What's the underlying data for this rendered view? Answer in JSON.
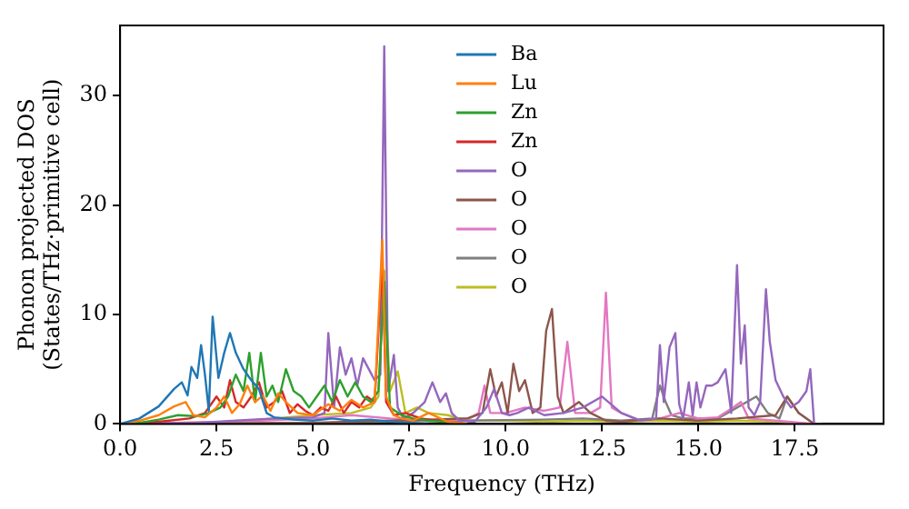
{
  "chart_data": {
    "type": "line",
    "xlabel": "Frequency (THz)",
    "ylabel": "Phonon projected DOS\n(States/THz·primitive cell)",
    "xlim": [
      0,
      19.8
    ],
    "ylim": [
      0,
      36.4
    ],
    "xticks": [
      {
        "value": 0,
        "label": "0.0"
      },
      2.5,
      {
        "value": 5,
        "label": "5.0"
      },
      7.5,
      {
        "value": 10,
        "label": "10.0"
      },
      12.5,
      {
        "value": 15,
        "label": "15.0"
      },
      17.5
    ],
    "yticks": [
      0,
      10,
      20,
      30
    ],
    "grid": false,
    "legend": "top",
    "line_style": "solid",
    "series": [
      {
        "name": "Ba",
        "color": "#1f77b4",
        "x": [
          0,
          0.5,
          1.0,
          1.4,
          1.6,
          1.75,
          1.85,
          2.0,
          2.1,
          2.2,
          2.3,
          2.4,
          2.55,
          2.7,
          2.85,
          3.0,
          3.2,
          3.4,
          3.6,
          3.8,
          4.0,
          4.5,
          5.0,
          5.5,
          6.0,
          6.5,
          7.0,
          7.5,
          8.0
        ],
        "values": [
          0,
          0.5,
          1.6,
          3.2,
          3.8,
          2.6,
          5.2,
          4.2,
          7.2,
          4.5,
          1.2,
          9.8,
          4.2,
          6.5,
          8.3,
          6.5,
          5.0,
          4.0,
          3.2,
          1.0,
          0.6,
          0.4,
          0.3,
          0.5,
          0.3,
          0.4,
          0.2,
          0.1,
          0
        ]
      },
      {
        "name": "Lu",
        "color": "#ff7f0e",
        "x": [
          0,
          0.5,
          1.0,
          1.4,
          1.7,
          1.9,
          2.2,
          2.5,
          2.7,
          2.9,
          3.1,
          3.3,
          3.5,
          3.7,
          3.9,
          4.1,
          4.3,
          4.6,
          5.0,
          5.4,
          5.7,
          6.0,
          6.3,
          6.6,
          6.8,
          6.9,
          7.1,
          7.3,
          7.6,
          8.0,
          8.5,
          9.0
        ],
        "values": [
          0,
          0.3,
          0.8,
          1.6,
          2.0,
          0.8,
          0.6,
          1.5,
          2.5,
          1.0,
          1.8,
          3.5,
          2.0,
          2.6,
          1.2,
          2.8,
          2.0,
          1.0,
          0.8,
          1.8,
          1.2,
          2.2,
          1.5,
          2.0,
          16.8,
          2.5,
          0.8,
          0.5,
          0.3,
          1.0,
          0.2,
          0
        ]
      },
      {
        "name": "Zn",
        "color": "#2ca02c",
        "x": [
          0,
          0.5,
          1.0,
          1.5,
          2.0,
          2.3,
          2.6,
          2.8,
          3.0,
          3.2,
          3.35,
          3.5,
          3.65,
          3.8,
          3.95,
          4.1,
          4.3,
          4.5,
          4.7,
          4.9,
          5.1,
          5.3,
          5.5,
          5.7,
          5.9,
          6.1,
          6.3,
          6.5,
          6.7,
          6.85,
          7.0,
          7.3,
          7.6,
          8.0,
          9.0
        ],
        "values": [
          0,
          0.1,
          0.4,
          0.8,
          0.7,
          1.0,
          1.5,
          2.5,
          4.5,
          3.0,
          6.5,
          2.0,
          6.5,
          2.5,
          3.5,
          2.0,
          5.0,
          3.0,
          2.5,
          1.5,
          2.5,
          3.5,
          2.0,
          4.0,
          2.5,
          3.8,
          2.5,
          2.0,
          3.0,
          13.0,
          1.5,
          0.8,
          0.5,
          0.3,
          0
        ]
      },
      {
        "name": "Zn",
        "color": "#d62728",
        "x": [
          0,
          1.0,
          1.8,
          2.2,
          2.5,
          2.7,
          2.85,
          3.0,
          3.2,
          3.4,
          3.6,
          3.8,
          4.0,
          4.2,
          4.4,
          4.6,
          4.8,
          5.0,
          5.2,
          5.4,
          5.6,
          5.8,
          6.0,
          6.2,
          6.4,
          6.6,
          6.8,
          6.9,
          7.1,
          7.4,
          7.8,
          8.2,
          9.0
        ],
        "values": [
          0,
          0.2,
          0.5,
          1.0,
          2.5,
          1.5,
          4.0,
          2.0,
          1.5,
          2.5,
          3.8,
          1.5,
          2.0,
          3.0,
          1.0,
          1.8,
          1.2,
          0.8,
          1.5,
          1.2,
          2.5,
          1.0,
          2.0,
          1.5,
          2.5,
          2.0,
          15.0,
          2.0,
          0.8,
          1.0,
          0.5,
          0.3,
          0
        ]
      },
      {
        "name": "O",
        "color": "#9467bd",
        "x": [
          0,
          2.0,
          3.0,
          4.0,
          5.0,
          5.3,
          5.4,
          5.55,
          5.7,
          5.85,
          6.0,
          6.15,
          6.3,
          6.45,
          6.6,
          6.75,
          6.85,
          6.95,
          7.1,
          7.2,
          7.35,
          7.6,
          7.9,
          8.1,
          8.3,
          8.45,
          8.6,
          8.8,
          9.2,
          9.5,
          9.7,
          9.9,
          10.1,
          10.3,
          10.6,
          11.0,
          11.5,
          12.0,
          12.5,
          13.0,
          13.5,
          13.9,
          14.0,
          14.1,
          14.25,
          14.4,
          14.5,
          14.6,
          14.75,
          14.85,
          14.95,
          15.05,
          15.2,
          15.35,
          15.5,
          15.7,
          15.85,
          16.0,
          16.1,
          16.2,
          16.3,
          16.45,
          16.6,
          16.75,
          16.85,
          17.0,
          17.2,
          17.4,
          17.6,
          17.8,
          17.9,
          18.0,
          18.2
        ],
        "values": [
          0,
          0.1,
          0.3,
          0.5,
          0.6,
          1.0,
          8.3,
          1.5,
          7.0,
          4.5,
          6.0,
          3.5,
          6.0,
          5.0,
          4.0,
          4.5,
          34.5,
          3.0,
          6.3,
          1.5,
          0.5,
          1.0,
          2.0,
          3.8,
          2.0,
          2.8,
          1.0,
          0.3,
          0.2,
          1.5,
          3.2,
          1.0,
          0.8,
          1.0,
          1.5,
          0.8,
          1.0,
          1.5,
          2.5,
          1.0,
          0.3,
          0.5,
          7.2,
          2.0,
          7.0,
          8.3,
          1.8,
          0.5,
          3.8,
          0.8,
          3.8,
          1.5,
          3.5,
          3.5,
          3.8,
          5.0,
          1.0,
          14.5,
          5.5,
          9.0,
          1.5,
          0.8,
          2.0,
          12.3,
          7.5,
          4.0,
          2.5,
          1.5,
          2.0,
          3.0,
          5.0,
          0,
          0
        ]
      },
      {
        "name": "O",
        "color": "#8c564b",
        "x": [
          0,
          5.0,
          7.0,
          8.0,
          9.0,
          9.4,
          9.6,
          9.75,
          9.9,
          10.05,
          10.2,
          10.35,
          10.5,
          10.7,
          10.9,
          11.05,
          11.2,
          11.35,
          11.5,
          11.7,
          11.9,
          12.2,
          12.6,
          13.0,
          14.0,
          15.0,
          16.0,
          17.0,
          17.3,
          17.6,
          18.0
        ],
        "values": [
          0,
          0.1,
          0.3,
          0.4,
          0.5,
          1.0,
          5.0,
          2.5,
          3.8,
          1.0,
          5.5,
          3.0,
          4.0,
          1.0,
          1.5,
          8.5,
          10.5,
          2.5,
          1.0,
          1.5,
          2.0,
          1.0,
          0.3,
          0.2,
          0.5,
          0.3,
          0.5,
          0.8,
          2.5,
          1.0,
          0
        ]
      },
      {
        "name": "O",
        "color": "#e377c2",
        "x": [
          0,
          3.0,
          5.0,
          6.0,
          7.0,
          8.0,
          9.0,
          9.3,
          9.45,
          9.6,
          10.0,
          10.5,
          11.0,
          11.4,
          11.6,
          11.8,
          12.2,
          12.45,
          12.6,
          12.75,
          13.0,
          13.5,
          14.0,
          14.5,
          15.0,
          15.5,
          15.9,
          16.1,
          16.3,
          17.0,
          18.0
        ],
        "values": [
          0,
          0.2,
          0.5,
          0.8,
          0.5,
          0.3,
          0.4,
          1.0,
          3.5,
          1.0,
          1.0,
          1.5,
          1.2,
          1.5,
          7.5,
          1.0,
          1.0,
          1.5,
          12.0,
          1.5,
          1.0,
          0.3,
          0.5,
          1.0,
          0.5,
          0.6,
          1.5,
          2.0,
          0.5,
          0.3,
          0
        ]
      },
      {
        "name": "O",
        "color": "#7f7f7f",
        "x": [
          0,
          5.0,
          7.0,
          9.0,
          11.0,
          12.0,
          13.0,
          13.8,
          14.0,
          14.15,
          14.3,
          14.6,
          15.0,
          15.5,
          16.0,
          16.5,
          16.8,
          17.1,
          17.3,
          17.6,
          18.0
        ],
        "values": [
          0,
          0.1,
          0.2,
          0.3,
          0.4,
          0.5,
          0.3,
          0.5,
          3.5,
          2.0,
          0.8,
          0.5,
          0.5,
          0.5,
          1.5,
          2.5,
          1.0,
          0.5,
          2.5,
          1.0,
          0
        ]
      },
      {
        "name": "O",
        "color": "#bcbd22",
        "x": [
          0,
          3.0,
          4.0,
          5.0,
          6.0,
          6.5,
          6.7,
          6.85,
          7.0,
          7.2,
          7.4,
          7.7,
          8.0,
          8.5,
          9.0,
          10.0,
          11.0,
          12.0,
          13.0,
          14.0,
          15.0,
          16.0,
          17.0,
          18.0
        ],
        "values": [
          0,
          0.2,
          0.5,
          0.8,
          1.0,
          1.5,
          2.5,
          14.0,
          3.0,
          4.8,
          1.0,
          1.5,
          1.0,
          0.8,
          0.3,
          0.3,
          0.2,
          0.3,
          0.2,
          0.3,
          0.2,
          0.3,
          0.2,
          0
        ]
      }
    ]
  }
}
